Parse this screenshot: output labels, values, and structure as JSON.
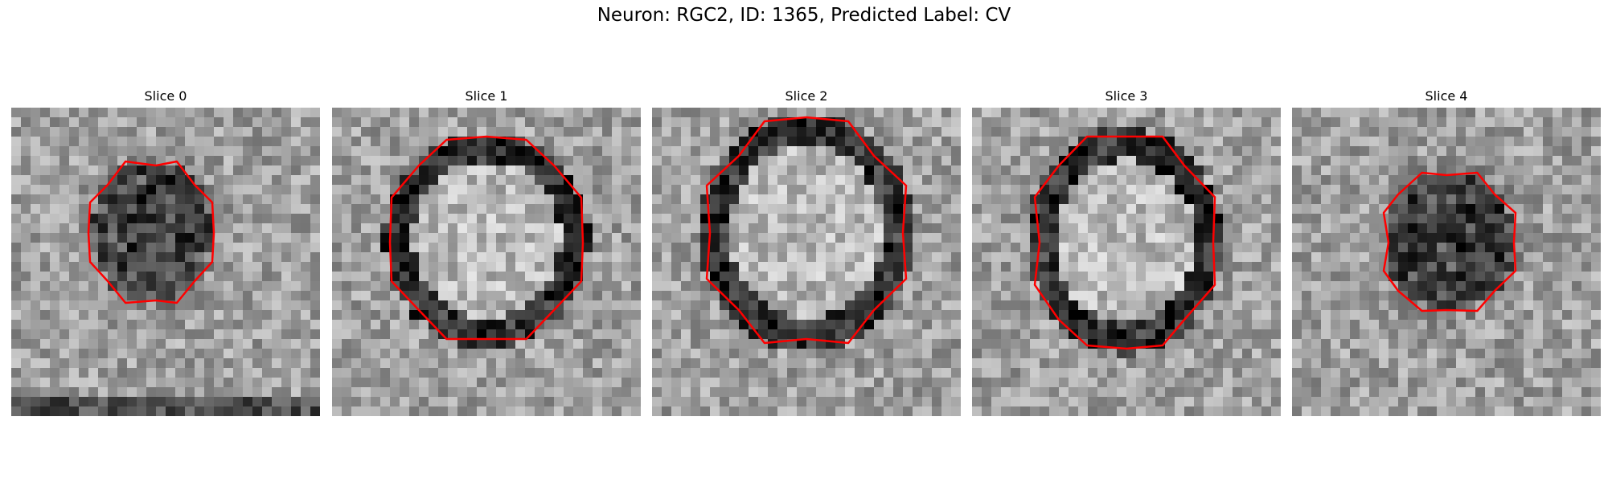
{
  "figure": {
    "title": "Neuron: RGC2, ID: 1365, Predicted Label: CV"
  },
  "panels": [
    {
      "title": "Slice 0",
      "seed": 11,
      "blob": "dark"
    },
    {
      "title": "Slice 1",
      "seed": 23,
      "blob": "ring"
    },
    {
      "title": "Slice 2",
      "seed": 37,
      "blob": "ring"
    },
    {
      "title": "Slice 3",
      "seed": 41,
      "blob": "ring"
    },
    {
      "title": "Slice 4",
      "seed": 59,
      "blob": "dark"
    }
  ],
  "colors": {
    "contour": "#ff0000"
  }
}
